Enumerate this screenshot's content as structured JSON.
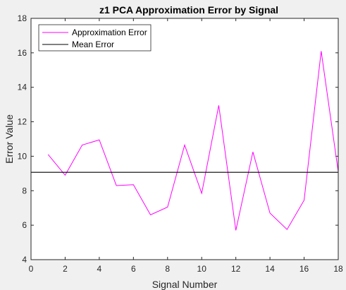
{
  "chart_data": {
    "type": "line",
    "title": "z1 PCA Approximation Error by Signal",
    "xlabel": "Signal Number",
    "ylabel": "Error Value",
    "xlim": [
      0,
      18
    ],
    "ylim": [
      4,
      18
    ],
    "xticks": [
      0,
      2,
      4,
      6,
      8,
      10,
      12,
      14,
      16,
      18
    ],
    "yticks": [
      4,
      6,
      8,
      10,
      12,
      14,
      16,
      18
    ],
    "grid": false,
    "legend_position": "top-left",
    "series": [
      {
        "name": "Approximation Error",
        "color": "#ff00ff",
        "x": [
          1,
          2,
          3,
          4,
          5,
          6,
          7,
          8,
          9,
          10,
          11,
          12,
          13,
          14,
          15,
          16,
          17,
          18
        ],
        "y": [
          10.1,
          8.9,
          10.65,
          10.95,
          8.3,
          8.35,
          6.6,
          7.05,
          10.65,
          7.85,
          12.95,
          5.7,
          10.25,
          6.7,
          5.75,
          7.45,
          16.1,
          9.1
        ]
      },
      {
        "name": "Mean Error",
        "color": "#000000",
        "x": [
          0,
          18
        ],
        "y": [
          9.07,
          9.07
        ]
      }
    ]
  }
}
